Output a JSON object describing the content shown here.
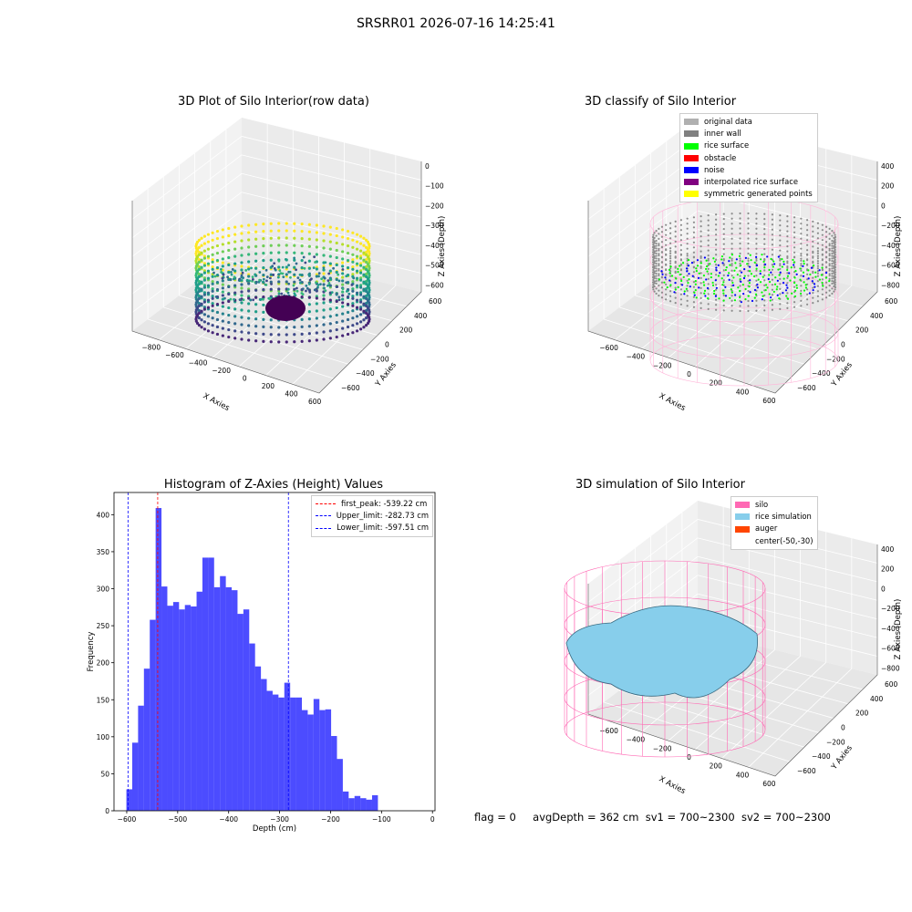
{
  "figure": {
    "title": "SRSRR01 2026-07-16 14:25:41",
    "footer": {
      "flag": "flag = 0",
      "avg_depth": "avgDepth = 362 cm",
      "sv1": "sv1 = 700~2300",
      "sv2": "sv2 = 700~2300"
    }
  },
  "panels": {
    "raw": {
      "title": "3D Plot of Silo Interior(row data)",
      "xlabel": "X Axies",
      "ylabel": "Y Axies",
      "zlabel": "Z Axies (Depth)",
      "xticks": [
        "−800",
        "−600",
        "−400",
        "−200",
        "0",
        "200",
        "400",
        "600"
      ],
      "yticks": [
        "600",
        "400",
        "200",
        "0",
        "−200",
        "−400",
        "−600"
      ],
      "zticks": [
        "0",
        "−100",
        "−200",
        "−300",
        "−400",
        "−500",
        "−600"
      ],
      "colormap": "viridis"
    },
    "classify": {
      "title": "3D classify of Silo Interior",
      "xlabel": "X Axies",
      "ylabel": "Y Axies",
      "zlabel": "Z Axies (Depth)",
      "xticks": [
        "−600",
        "−400",
        "−200",
        "0",
        "200",
        "400",
        "600"
      ],
      "yticks": [
        "600",
        "400",
        "200",
        "0",
        "−200",
        "−400",
        "−600"
      ],
      "zticks": [
        "400",
        "200",
        "0",
        "−200",
        "−400",
        "−600",
        "−800"
      ],
      "legend": [
        {
          "label": "original data",
          "color": "#b0b0b0"
        },
        {
          "label": "inner wall",
          "color": "#808080"
        },
        {
          "label": "rice surface",
          "color": "#00ff00"
        },
        {
          "label": "obstacle",
          "color": "#ff0000"
        },
        {
          "label": "noise",
          "color": "#0000ff"
        },
        {
          "label": "interpolated rice surface",
          "color": "#800080"
        },
        {
          "label": "symmetric generated points",
          "color": "#ffff00"
        }
      ]
    },
    "simulation": {
      "title": "3D simulation of Silo Interior",
      "xlabel": "X Axies",
      "ylabel": "Y Axies",
      "zlabel": "Z Axies (Depth)",
      "xticks": [
        "−600",
        "−400",
        "−200",
        "0",
        "200",
        "400",
        "600"
      ],
      "yticks": [
        "600",
        "400",
        "200",
        "0",
        "−200",
        "−400",
        "−600"
      ],
      "zticks": [
        "400",
        "200",
        "0",
        "−200",
        "−400",
        "−600",
        "−800"
      ],
      "legend": [
        {
          "label": "silo",
          "color": "#ff69b4"
        },
        {
          "label": "rice simulation",
          "color": "#87ceeb"
        },
        {
          "label": "auger",
          "color": "#ff4500"
        },
        {
          "label": "center(-50,-30)",
          "color": ""
        }
      ]
    }
  },
  "chart_data": {
    "type": "bar",
    "title": "Histogram of Z-Axies (Height) Values",
    "xlabel": "Depth (cm)",
    "ylabel": "Frequency",
    "xlim": [
      -625,
      5
    ],
    "ylim": [
      0,
      430
    ],
    "xticks": [
      -600,
      -500,
      -400,
      -300,
      -200,
      -100,
      0
    ],
    "yticks": [
      0,
      50,
      100,
      150,
      200,
      250,
      300,
      350,
      400
    ],
    "bar_color": "#0000ff",
    "bin_start": -600.7,
    "bin_width": 11.48,
    "values": [
      29,
      92,
      142,
      192,
      258,
      409,
      303,
      277,
      282,
      272,
      278,
      276,
      296,
      342,
      342,
      302,
      317,
      302,
      298,
      266,
      272,
      226,
      195,
      178,
      162,
      157,
      153,
      173,
      153,
      153,
      136,
      130,
      151,
      136,
      137,
      101,
      70,
      26,
      17,
      20,
      17,
      15,
      21
    ],
    "vlines": [
      {
        "label": "first_peak: -539.22 cm",
        "x": -539.22,
        "color": "#ff0000"
      },
      {
        "label": "Upper_limit: -282.73 cm",
        "x": -282.73,
        "color": "#0000ff"
      },
      {
        "label": "Lower_limit: -597.51 cm",
        "x": -597.51,
        "color": "#0000ff"
      }
    ]
  }
}
